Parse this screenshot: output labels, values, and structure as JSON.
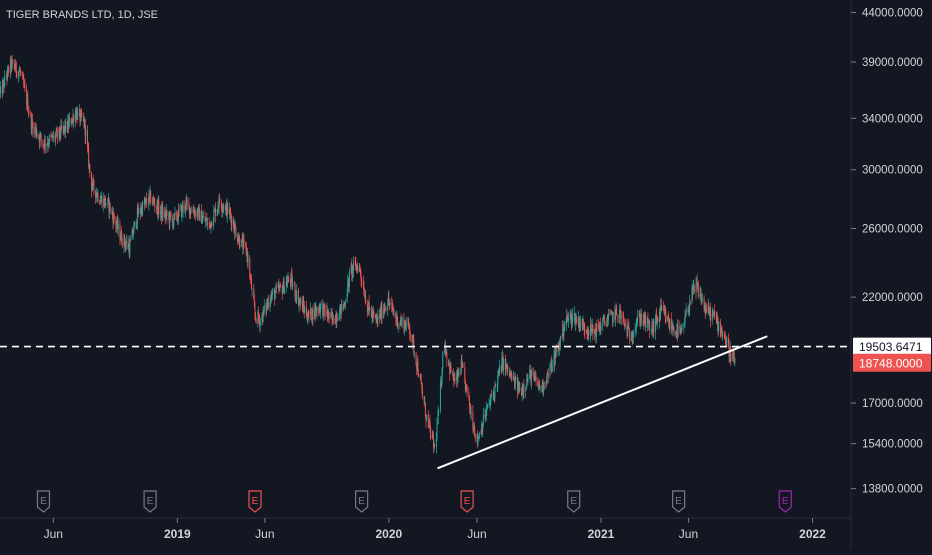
{
  "header": {
    "title": "TIGER BRANDS LTD, 1D, JSE"
  },
  "colors": {
    "background": "#131722",
    "up": "#26a69a",
    "down": "#ef5350",
    "text": "#d1d4dc",
    "price_line": "#ffffff",
    "last_price": "#ef5350",
    "earnings_past": "#787b86",
    "earnings_near": "#ef5350",
    "earnings_future": "#9c27b0"
  },
  "chart_data": {
    "type": "candlestick",
    "title": "TIGER BRANDS LTD, 1D, JSE",
    "scale": "log",
    "y_ticks": [
      "44000.0000",
      "39000.0000",
      "34000.0000",
      "30000.0000",
      "26000.0000",
      "22000.0000",
      "17000.0000",
      "15400.0000",
      "13800.0000"
    ],
    "x_ticks": [
      "Jun",
      "2019",
      "Jun",
      "2020",
      "Jun",
      "2021",
      "Jun",
      "2022"
    ],
    "horizontal_level": {
      "value": 19503.6471,
      "label": "19503.6471",
      "style": "dashed"
    },
    "last_price": {
      "value": 18748.0,
      "label": "18748.0000"
    },
    "trendline": {
      "from": {
        "date": "2020-03-25",
        "value": 14500
      },
      "to": {
        "date": "2021-10-15",
        "value": 20000
      }
    },
    "earnings_markers": [
      {
        "label": "E",
        "date": "2018-05-15",
        "state": "past"
      },
      {
        "label": "E",
        "date": "2018-11-15",
        "state": "past"
      },
      {
        "label": "E",
        "date": "2019-05-15",
        "state": "near"
      },
      {
        "label": "E",
        "date": "2019-11-15",
        "state": "past"
      },
      {
        "label": "E",
        "date": "2020-05-15",
        "state": "near"
      },
      {
        "label": "E",
        "date": "2020-11-15",
        "state": "past"
      },
      {
        "label": "E",
        "date": "2021-05-15",
        "state": "past"
      },
      {
        "label": "E",
        "date": "2021-11-15",
        "state": "future"
      }
    ],
    "price_path": [
      [
        "2018-03-01",
        36000
      ],
      [
        "2018-03-20",
        38800
      ],
      [
        "2018-04-05",
        38000
      ],
      [
        "2018-04-25",
        33500
      ],
      [
        "2018-05-15",
        32000
      ],
      [
        "2018-06-05",
        32500
      ],
      [
        "2018-06-25",
        33300
      ],
      [
        "2018-07-10",
        34500
      ],
      [
        "2018-07-25",
        33500
      ],
      [
        "2018-08-05",
        29000
      ],
      [
        "2018-08-20",
        28000
      ],
      [
        "2018-09-05",
        27500
      ],
      [
        "2018-09-25",
        25500
      ],
      [
        "2018-10-10",
        24800
      ],
      [
        "2018-10-25",
        27000
      ],
      [
        "2018-11-15",
        28000
      ],
      [
        "2018-12-05",
        27000
      ],
      [
        "2018-12-25",
        26500
      ],
      [
        "2019-01-15",
        27500
      ],
      [
        "2019-02-05",
        27000
      ],
      [
        "2019-02-25",
        26200
      ],
      [
        "2019-03-15",
        27800
      ],
      [
        "2019-04-01",
        27000
      ],
      [
        "2019-04-15",
        25500
      ],
      [
        "2019-05-01",
        24500
      ],
      [
        "2019-05-15",
        21000
      ],
      [
        "2019-05-25",
        20800
      ],
      [
        "2019-06-10",
        22000
      ],
      [
        "2019-07-01",
        22500
      ],
      [
        "2019-07-15",
        23000
      ],
      [
        "2019-07-30",
        21800
      ],
      [
        "2019-08-15",
        21000
      ],
      [
        "2019-09-05",
        21500
      ],
      [
        "2019-09-25",
        20800
      ],
      [
        "2019-10-15",
        21500
      ],
      [
        "2019-10-28",
        23500
      ],
      [
        "2019-11-10",
        23800
      ],
      [
        "2019-11-25",
        21500
      ],
      [
        "2019-12-10",
        20700
      ],
      [
        "2019-12-30",
        21800
      ],
      [
        "2020-01-15",
        20800
      ],
      [
        "2020-02-05",
        20500
      ],
      [
        "2020-02-20",
        18500
      ],
      [
        "2020-03-05",
        16500
      ],
      [
        "2020-03-20",
        15200
      ],
      [
        "2020-03-28",
        16800
      ],
      [
        "2020-04-05",
        19800
      ],
      [
        "2020-04-15",
        18500
      ],
      [
        "2020-04-25",
        17800
      ],
      [
        "2020-05-05",
        18600
      ],
      [
        "2020-05-20",
        16800
      ],
      [
        "2020-06-01",
        15500
      ],
      [
        "2020-06-15",
        16500
      ],
      [
        "2020-07-01",
        17500
      ],
      [
        "2020-07-15",
        18800
      ],
      [
        "2020-08-01",
        18000
      ],
      [
        "2020-08-15",
        17500
      ],
      [
        "2020-09-01",
        18200
      ],
      [
        "2020-09-20",
        17600
      ],
      [
        "2020-10-05",
        18400
      ],
      [
        "2020-10-20",
        19500
      ],
      [
        "2020-11-01",
        20800
      ],
      [
        "2020-11-15",
        21000
      ],
      [
        "2020-12-01",
        20500
      ],
      [
        "2020-12-20",
        20200
      ],
      [
        "2021-01-10",
        20800
      ],
      [
        "2021-02-01",
        21200
      ],
      [
        "2021-02-20",
        20000
      ],
      [
        "2021-03-10",
        21000
      ],
      [
        "2021-03-30",
        20300
      ],
      [
        "2021-04-15",
        21300
      ],
      [
        "2021-05-01",
        20500
      ],
      [
        "2021-05-20",
        20100
      ],
      [
        "2021-06-05",
        22000
      ],
      [
        "2021-06-15",
        22600
      ],
      [
        "2021-07-01",
        21300
      ],
      [
        "2021-07-15",
        21000
      ],
      [
        "2021-07-30",
        20200
      ],
      [
        "2021-08-10",
        19300
      ],
      [
        "2021-08-22",
        18748
      ]
    ]
  }
}
